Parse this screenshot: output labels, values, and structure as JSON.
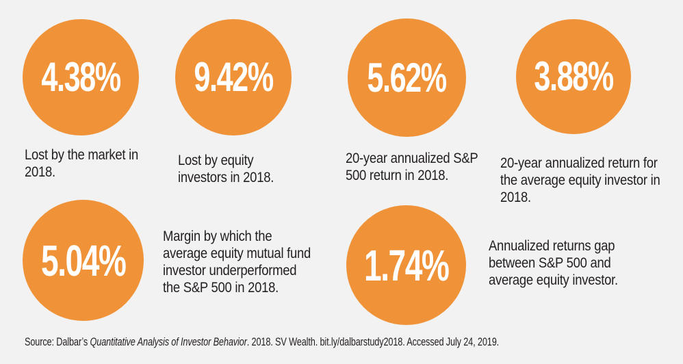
{
  "meta": {
    "background_color": "#F2F2F2",
    "accent_orange": "#F09238",
    "text_color": "#231F20",
    "value_text_color": "#FFFFFF"
  },
  "stats": [
    {
      "value": "4.38%",
      "caption": "Lost by the market in 2018.",
      "lines": [
        "Lost by the market in",
        "2018."
      ]
    },
    {
      "value": "9.42%",
      "caption": "Lost by equity investors in 2018.",
      "lines": [
        "Lost by equity",
        "investors in 2018."
      ]
    },
    {
      "value": "5.62%",
      "caption": "20-year annualized S&P 500 return in 2018.",
      "lines": [
        "20-year annualized S&P",
        "500 return in 2018."
      ]
    },
    {
      "value": "3.88%",
      "caption": "20-year annualized return for the average equity investor in 2018.",
      "lines": [
        "20-year annualized return for",
        "the average equity investor in",
        "2018."
      ]
    },
    {
      "value": "5.04%",
      "caption": "Margin by which the average equity mutual fund investor underperformed the S&P 500 in 2018.",
      "lines": [
        "Margin by which the",
        "average equity mutual fund",
        "investor underperformed",
        "the S&P 500 in 2018."
      ]
    },
    {
      "value": "1.74%",
      "caption": "Annualized returns gap between S&P 500 and average equity investor.",
      "lines": [
        "Annualized returns gap",
        "between S&P 500 and",
        "average equity investor."
      ]
    }
  ],
  "source": {
    "prefix": "Source: Dalbar’s ",
    "title_italic": "Quantitative Analysis of Investor Behavior",
    "suffix": ". 2018. SV Wealth. bit.ly/dalbarstudy2018. Accessed July 24, 2019."
  },
  "chart_data": {
    "type": "table",
    "title": "Dalbar 2018 investor-behavior statistics",
    "categories": [
      "Lost by the market in 2018.",
      "Lost by equity investors in 2018.",
      "20-year annualized S&P 500 return in 2018.",
      "20-year annualized return for the average equity investor in 2018.",
      "Margin by which the average equity mutual fund investor underperformed the S&P 500 in 2018.",
      "Annualized returns gap between S&P 500 and average equity investor."
    ],
    "values": [
      4.38,
      9.42,
      5.62,
      3.88,
      5.04,
      1.74
    ],
    "unit": "%",
    "source": "Source: Dalbar’s Quantitative Analysis of Investor Behavior. 2018. SV Wealth. bit.ly/dalbarstudy2018. Accessed July 24, 2019."
  }
}
